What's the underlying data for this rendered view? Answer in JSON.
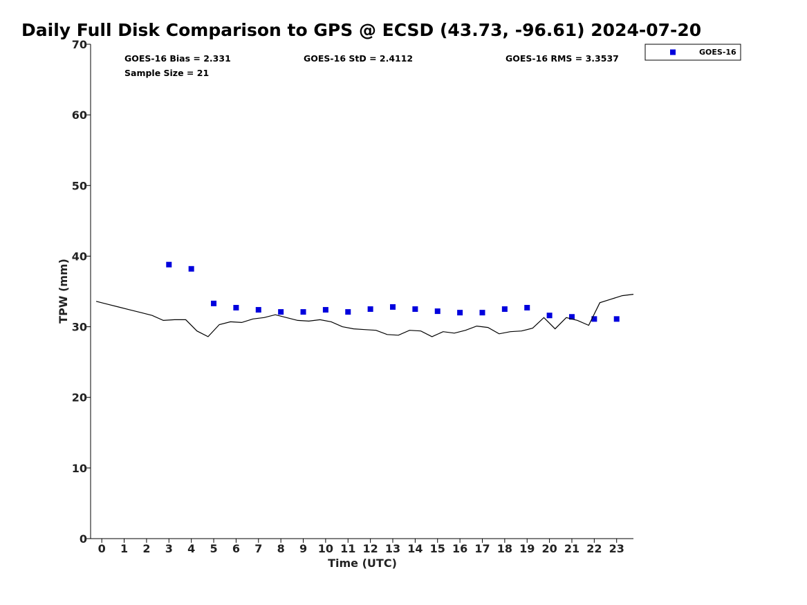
{
  "chart_data": {
    "type": "scatter",
    "title": "Daily Full Disk Comparison to GPS @ ECSD (43.73, -96.61) 2024-07-20",
    "xlabel": "Time (UTC)",
    "ylabel": "TPW (mm)",
    "xlim": [
      -0.5,
      23.75
    ],
    "ylim": [
      0,
      70
    ],
    "x_ticks": [
      "0",
      "1",
      "2",
      "3",
      "4",
      "5",
      "6",
      "7",
      "8",
      "9",
      "10",
      "11",
      "12",
      "13",
      "14",
      "15",
      "16",
      "17",
      "18",
      "19",
      "20",
      "21",
      "22",
      "23"
    ],
    "y_ticks": [
      "0",
      "10",
      "20",
      "30",
      "40",
      "50",
      "60",
      "70"
    ],
    "grid": false,
    "legend_position": "top-right",
    "stats": {
      "bias": "GOES-16 Bias = 2.331",
      "std": "GOES-16 StD = 2.4112",
      "rms": "GOES-16 RMS = 3.3537",
      "sample_size": "Sample Size = 21"
    },
    "series": [
      {
        "name": "GOES-16",
        "kind": "scatter",
        "marker": "square",
        "color": "#0000dd",
        "x": [
          3,
          4,
          5,
          6,
          7,
          8,
          9,
          10,
          11,
          12,
          13,
          14,
          15,
          16,
          17,
          18,
          19,
          20,
          21,
          22,
          23
        ],
        "y": [
          38.8,
          38.2,
          33.3,
          32.7,
          32.4,
          32.1,
          32.1,
          32.4,
          32.1,
          32.5,
          32.8,
          32.5,
          32.2,
          32.0,
          32.0,
          32.5,
          32.7,
          31.6,
          31.4,
          31.1,
          31.1
        ]
      },
      {
        "kind": "line",
        "color": "#000000",
        "x": [
          -0.25,
          0.25,
          0.75,
          1.25,
          1.75,
          2.25,
          2.75,
          3.25,
          3.75,
          4.25,
          4.75,
          5.25,
          5.75,
          6.25,
          6.75,
          7.25,
          7.75,
          8.25,
          8.75,
          9.25,
          9.75,
          10.25,
          10.75,
          11.25,
          11.75,
          12.25,
          12.75,
          13.25,
          13.75,
          14.25,
          14.75,
          15.25,
          15.75,
          16.25,
          16.75,
          17.25,
          17.75,
          18.25,
          18.75,
          19.25,
          19.75,
          20.25,
          20.75,
          21.25,
          21.75,
          22.25,
          22.75,
          23.25,
          23.75
        ],
        "y": [
          33.6,
          33.2,
          32.8,
          32.4,
          32.0,
          31.6,
          30.9,
          31.0,
          31.0,
          29.4,
          28.6,
          30.3,
          30.7,
          30.6,
          31.1,
          31.3,
          31.7,
          31.3,
          30.9,
          30.8,
          31.0,
          30.7,
          30.0,
          29.7,
          29.6,
          29.5,
          28.9,
          28.8,
          29.5,
          29.4,
          28.6,
          29.3,
          29.1,
          29.5,
          30.1,
          29.9,
          29.0,
          29.3,
          29.4,
          29.8,
          31.3,
          29.7,
          31.3,
          30.9,
          30.2,
          33.4,
          33.9,
          34.4,
          34.6
        ]
      }
    ]
  }
}
